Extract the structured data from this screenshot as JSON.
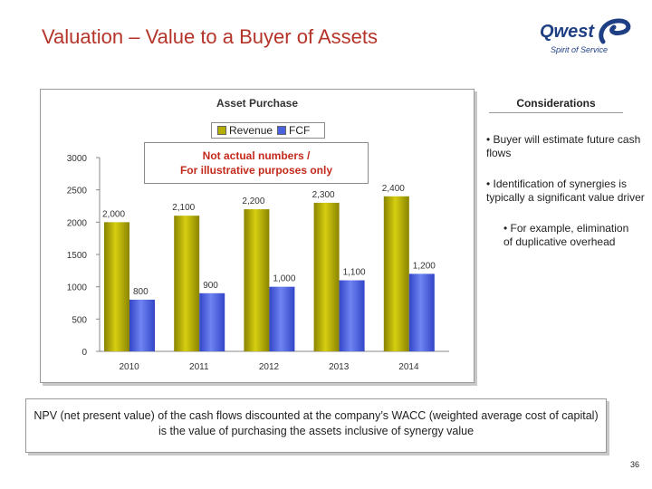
{
  "slide": {
    "title": "Valuation – Value to a Buyer of Assets",
    "page_number": "36"
  },
  "logo": {
    "word": "Qwest",
    "tagline": "Spirit of Service"
  },
  "chart_note": {
    "line1": "Not actual numbers /",
    "line2": "For illustrative purposes only"
  },
  "considerations": {
    "title": "Considerations",
    "bullets": [
      "• Buyer will estimate future cash flows",
      "• Identification of synergies is typically a significant value driver"
    ],
    "sub_bullet": "• For example, elimination of duplicative overhead"
  },
  "npv_text": "NPV (net present value) of the cash flows discounted at the company’s WACC (weighted average cost of capital) is the value of purchasing the assets inclusive of synergy value",
  "colors": {
    "title_red": "#b5342a",
    "note_red": "#c42a1c",
    "revenue_bar": "#b5ad00",
    "fcf_bar": "#4a62e0",
    "logo_blue": "#1f3f84"
  },
  "chart_data": {
    "type": "bar",
    "title": "Asset Purchase",
    "categories": [
      "2010",
      "2011",
      "2012",
      "2013",
      "2014"
    ],
    "series": [
      {
        "name": "Revenue",
        "values": [
          2000,
          2100,
          2200,
          2300,
          2400
        ],
        "labels": [
          "2,000",
          "2,100",
          "2,200",
          "2,300",
          "2,400"
        ]
      },
      {
        "name": "FCF",
        "values": [
          800,
          900,
          1000,
          1100,
          1200
        ],
        "labels": [
          "800",
          "900",
          "1,000",
          "1,100",
          "1,200"
        ]
      }
    ],
    "ylim": [
      0,
      3000
    ],
    "yticks": [
      0,
      500,
      1000,
      1500,
      2000,
      2500,
      3000
    ],
    "xlabel": "",
    "ylabel": "",
    "legend": "top-center"
  }
}
